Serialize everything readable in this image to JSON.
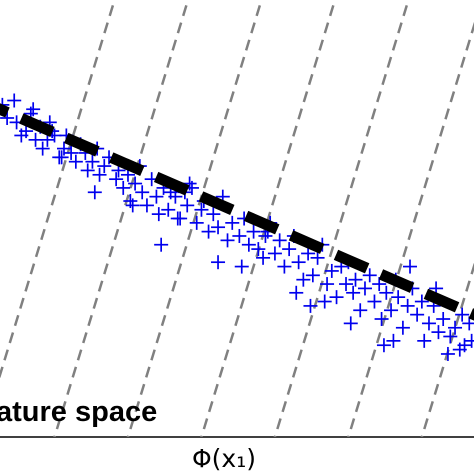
{
  "chart_data": {
    "type": "scatter",
    "title": "",
    "xlabel": "Φ(x₁)",
    "ylabel": "",
    "annotation": "ature space",
    "grid": false,
    "xlim": [
      0,
      10
    ],
    "ylim": [
      0,
      10
    ],
    "marker": "+",
    "colors": {
      "points": "#0000ee",
      "trend_line": "#000000",
      "guide_lines": "#808080",
      "background": "#ffffff"
    },
    "trend_line": {
      "style": "thick-dashed",
      "intercept": 7.5,
      "slope": -0.47
    },
    "guide_lines": {
      "style": "dashed",
      "slope": 3.55,
      "x_intercepts": [
        -0.4,
        1.15,
        2.7,
        4.25,
        5.8,
        7.35,
        8.9
      ]
    },
    "series": [
      {
        "x": [
          0.05,
          0.15,
          0.3,
          0.35,
          0.45,
          0.55,
          0.65,
          0.75,
          0.85,
          0.9,
          1.0,
          1.05,
          1.15,
          1.25,
          1.35,
          1.4,
          1.5,
          1.6,
          1.7,
          1.8,
          1.85,
          1.95,
          2.05,
          2.1,
          2.2,
          2.3,
          2.45,
          2.5,
          2.6,
          2.7,
          2.75,
          2.85,
          2.95,
          3.0,
          3.1,
          3.2,
          3.3,
          3.35,
          3.45,
          3.55,
          3.6,
          3.7,
          3.8,
          3.9,
          3.95,
          4.05,
          4.15,
          4.25,
          4.3,
          4.4,
          4.5,
          4.6,
          4.7,
          4.8,
          4.9,
          5.05,
          5.15,
          5.25,
          5.35,
          5.45,
          5.55,
          5.6,
          5.7,
          5.8,
          5.9,
          6.0,
          6.1,
          6.2,
          6.3,
          6.4,
          6.5,
          6.6,
          6.7,
          6.8,
          6.9,
          7.0,
          7.1,
          7.2,
          7.3,
          7.35,
          7.45,
          7.5,
          7.6,
          7.7,
          7.8,
          7.9,
          8.0,
          8.05,
          8.15,
          8.25,
          8.35,
          8.4,
          8.5,
          8.6,
          8.7,
          8.8,
          8.9,
          8.95,
          9.05,
          9.15,
          9.25,
          9.35,
          9.45,
          9.5,
          9.6,
          9.7,
          9.8,
          9.9,
          9.95,
          0.7,
          1.3,
          2.0,
          2.8,
          3.4,
          4.0,
          4.6,
          5.1,
          5.65,
          6.25,
          6.85,
          7.4,
          8.1,
          8.65,
          9.2,
          9.75,
          1.1,
          3.75,
          6.55,
          8.3
        ],
        "y": [
          7.6,
          7.3,
          7.7,
          7.2,
          6.9,
          7.0,
          7.4,
          6.8,
          7.1,
          6.6,
          6.8,
          7.2,
          6.9,
          6.4,
          6.6,
          6.9,
          6.5,
          6.3,
          6.7,
          6.5,
          6.1,
          6.3,
          6.6,
          6.0,
          6.2,
          6.4,
          5.9,
          6.1,
          5.7,
          6.0,
          5.4,
          5.8,
          6.2,
          5.6,
          5.3,
          5.9,
          5.5,
          5.1,
          5.7,
          5.2,
          5.6,
          5.5,
          5.0,
          5.6,
          5.3,
          5.7,
          4.9,
          5.2,
          5.4,
          4.7,
          5.1,
          4.8,
          5.5,
          4.5,
          4.9,
          4.6,
          5.0,
          4.4,
          4.7,
          4.3,
          4.1,
          4.6,
          4.9,
          4.2,
          4.5,
          3.9,
          4.3,
          4.6,
          4.0,
          3.6,
          4.2,
          3.7,
          4.1,
          4.4,
          3.5,
          3.8,
          3.2,
          3.9,
          3.5,
          4.0,
          3.3,
          3.6,
          2.9,
          3.4,
          3.7,
          3.1,
          3.5,
          2.7,
          3.3,
          2.9,
          3.6,
          3.2,
          2.5,
          3.0,
          3.4,
          2.8,
          3.1,
          2.2,
          2.6,
          3.0,
          2.4,
          2.7,
          1.9,
          2.3,
          2.5,
          2.0,
          2.1,
          2.6,
          2.2,
          7.5,
          6.4,
          5.6,
          5.3,
          4.4,
          5.8,
          4.0,
          3.9,
          4.7,
          3.3,
          3.1,
          2.6,
          2.1,
          3.9,
          3.4,
          2.8,
          7.0,
          5.0,
          3.0,
          2.2
        ]
      }
    ]
  }
}
